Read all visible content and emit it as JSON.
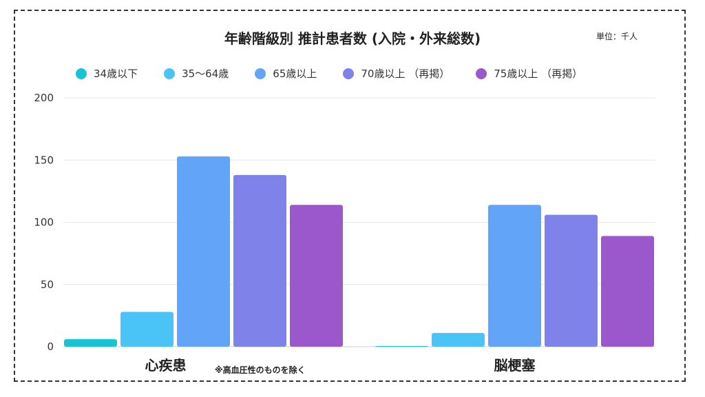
{
  "chart_data": {
    "type": "bar",
    "title": "年齢階級別 推計患者数 (入院・外来総数)",
    "unit_label": "単位：千人",
    "categories": [
      "心疾患",
      "脳梗塞"
    ],
    "category_note": "※高血圧性のものを除く",
    "series": [
      {
        "name": "34歳以下",
        "color": "#17c3d6",
        "values": [
          6,
          0.5
        ]
      },
      {
        "name": "35〜64歳",
        "color": "#4ac4f7",
        "values": [
          28,
          11
        ]
      },
      {
        "name": "65歳以上",
        "color": "#62a4f7",
        "values": [
          153,
          114
        ]
      },
      {
        "name": "70歳以上 （再掲）",
        "color": "#7f82e8",
        "values": [
          138,
          106
        ]
      },
      {
        "name": "75歳以上 （再掲）",
        "color": "#9b57cc",
        "values": [
          114,
          89
        ]
      }
    ],
    "ylim": [
      0,
      200
    ],
    "yticks": [
      0,
      50,
      100,
      150,
      200
    ],
    "grid": true,
    "legend_position": "top"
  }
}
